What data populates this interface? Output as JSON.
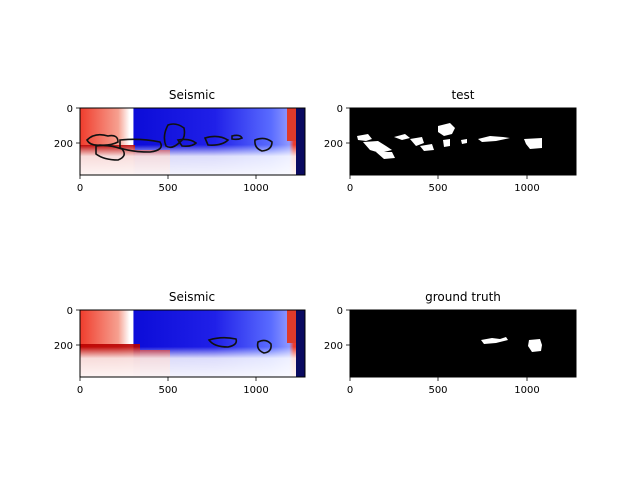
{
  "chart_data": [
    {
      "type": "heatmap",
      "title": "Seismic",
      "colormap": "seismic",
      "overlay": "black contour lines",
      "xlim": [
        0,
        1280
      ],
      "ylim": [
        0,
        380
      ],
      "y_inverted": true,
      "xticks": [
        "0",
        "500",
        "1000"
      ],
      "yticks": [
        "0",
        "200"
      ],
      "contour_regions": [
        {
          "x": [
            40,
            170
          ],
          "y": [
            150,
            210
          ]
        },
        {
          "x": [
            90,
            260
          ],
          "y": [
            195,
            285
          ]
        },
        {
          "x": [
            300,
            470
          ],
          "y": [
            190,
            260
          ]
        },
        {
          "x": [
            500,
            580
          ],
          "y": [
            100,
            240
          ]
        },
        {
          "x": [
            700,
            880
          ],
          "y": [
            165,
            225
          ]
        },
        {
          "x": [
            1010,
            1110
          ],
          "y": [
            170,
            250
          ]
        }
      ]
    },
    {
      "type": "heatmap",
      "title": "test",
      "colormap": "gray",
      "xlim": [
        0,
        1280
      ],
      "ylim": [
        0,
        380
      ],
      "y_inverted": true,
      "xticks": [
        "0",
        "500",
        "1000"
      ],
      "yticks": [
        "0",
        "200"
      ],
      "white_regions": [
        {
          "x": [
            40,
            310
          ],
          "y": [
            150,
            260
          ]
        },
        {
          "x": [
            370,
            600
          ],
          "y": [
            140,
            240
          ]
        },
        {
          "x": [
            720,
            920
          ],
          "y": [
            150,
            215
          ]
        },
        {
          "x": [
            1040,
            1110
          ],
          "y": [
            175,
            250
          ]
        }
      ]
    },
    {
      "type": "heatmap",
      "title": "Seismic",
      "colormap": "seismic",
      "overlay": "black contour lines",
      "xlim": [
        0,
        1280
      ],
      "ylim": [
        0,
        380
      ],
      "y_inverted": true,
      "xticks": [
        "0",
        "500",
        "1000"
      ],
      "yticks": [
        "0",
        "200"
      ],
      "contour_regions": [
        {
          "x": [
            740,
            880
          ],
          "y": [
            175,
            225
          ]
        },
        {
          "x": [
            1010,
            1110
          ],
          "y": [
            180,
            250
          ]
        }
      ]
    },
    {
      "type": "heatmap",
      "title": "ground truth",
      "colormap": "gray",
      "xlim": [
        0,
        1280
      ],
      "ylim": [
        0,
        380
      ],
      "y_inverted": true,
      "xticks": [
        "0",
        "500",
        "1000"
      ],
      "yticks": [
        "0",
        "200"
      ],
      "white_regions": [
        {
          "x": [
            740,
            880
          ],
          "y": [
            175,
            225
          ]
        },
        {
          "x": [
            1040,
            1110
          ],
          "y": [
            180,
            250
          ]
        }
      ]
    }
  ]
}
